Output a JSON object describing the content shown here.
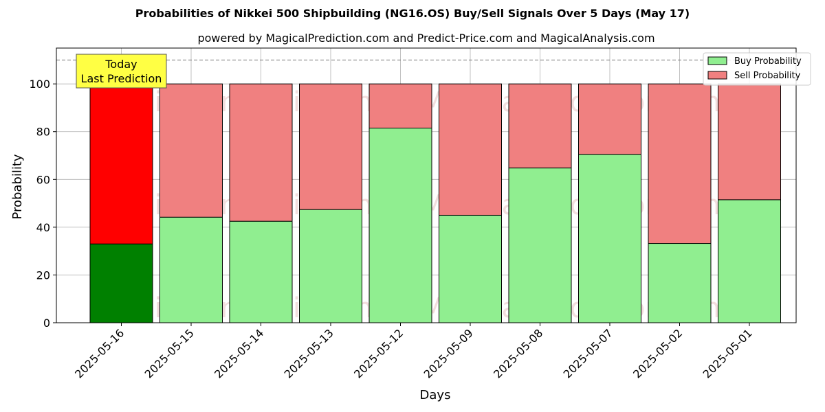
{
  "title": "Probabilities of Nikkei 500 Shipbuilding (NG16.OS) Buy/Sell Signals Over 5 Days (May 17)",
  "subtitle": "powered by MagicalPrediction.com and Predict-Price.com and MagicalAnalysis.com",
  "watermarks": [
    "MagicalAnalysis.com",
    "MagicalPrediction.com"
  ],
  "annotation": {
    "line1": "Today",
    "line2": "Last Prediction"
  },
  "colors": {
    "buy": "#90ee90",
    "sell": "#f08080",
    "buy_today": "#008000",
    "sell_today": "#ff0000",
    "annotation_bg": "#ffff44"
  },
  "chart_data": {
    "type": "bar",
    "stacked": true,
    "xlabel": "Days",
    "ylabel": "Probability",
    "ylim": [
      0,
      115
    ],
    "yticks": [
      0,
      20,
      40,
      60,
      80,
      100
    ],
    "grid": true,
    "legend_position": "top-right",
    "reference_line": 110,
    "categories": [
      "2025-05-16",
      "2025-05-15",
      "2025-05-14",
      "2025-05-13",
      "2025-05-12",
      "2025-05-09",
      "2025-05-08",
      "2025-05-07",
      "2025-05-02",
      "2025-05-01"
    ],
    "series": [
      {
        "name": "Buy Probability",
        "values": [
          33.0,
          44.2,
          42.5,
          47.4,
          81.5,
          45.0,
          64.8,
          70.5,
          33.2,
          51.5
        ]
      },
      {
        "name": "Sell Probability",
        "values": [
          67.0,
          55.8,
          57.5,
          52.6,
          18.5,
          55.0,
          35.2,
          29.5,
          66.8,
          48.5
        ]
      }
    ]
  }
}
